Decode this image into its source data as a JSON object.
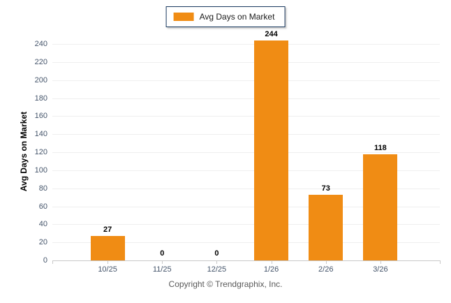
{
  "legend": {
    "label": "Avg Days on Market",
    "swatch_icon": "legend-swatch",
    "swatch_color": "#F08C14",
    "border_color": "#17375E"
  },
  "y_axis": {
    "title": "Avg Days on Market",
    "ticks": [
      "0",
      "20",
      "40",
      "60",
      "80",
      "100",
      "120",
      "140",
      "160",
      "180",
      "200",
      "220",
      "240"
    ]
  },
  "footer": {
    "copyright": "Copyright © Trendgraphix, Inc."
  },
  "chart_data": {
    "type": "bar",
    "title": "Avg Days on Market",
    "series_name": "Avg Days on Market",
    "categories": [
      "10/25",
      "11/25",
      "12/25",
      "1/26",
      "2/26",
      "3/26"
    ],
    "values": [
      27,
      0,
      0,
      244,
      73,
      118
    ],
    "data_labels": [
      "27",
      "0",
      "0",
      "244",
      "73",
      "118"
    ],
    "xlabel": "",
    "ylabel": "Avg Days on Market",
    "ylim": [
      0,
      240
    ],
    "ytick_step": 20,
    "bar_color": "#F08C14",
    "grid": true,
    "legend_position": "top-center"
  }
}
